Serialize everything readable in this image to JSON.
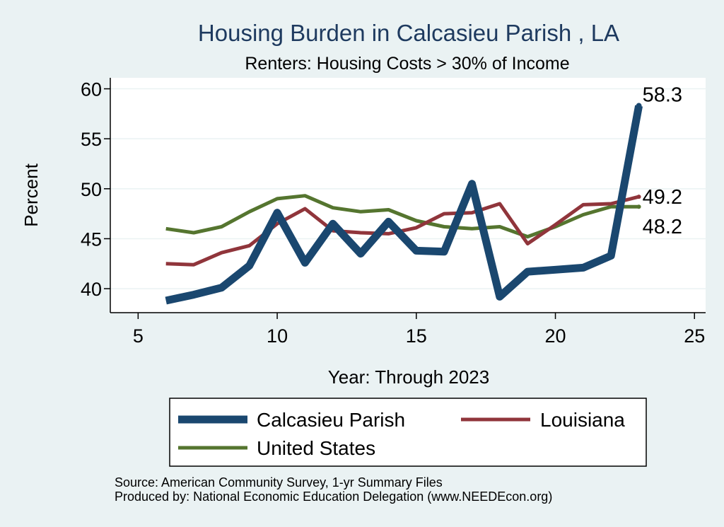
{
  "chart_data": {
    "type": "line",
    "title": "Housing Burden in Calcasieu Parish , LA",
    "subtitle": "Renters: Housing Costs > 30% of Income",
    "xlabel": "Year: Through 2023",
    "ylabel": "Percent",
    "xlim": [
      4,
      25.4
    ],
    "ylim": [
      37.6,
      61.1
    ],
    "xticks": [
      5,
      10,
      15,
      20,
      25
    ],
    "yticks": [
      40,
      45,
      50,
      55,
      60
    ],
    "x": [
      6,
      7,
      8,
      9,
      10,
      11,
      12,
      13,
      14,
      15,
      16,
      17,
      18,
      19,
      20,
      21,
      22,
      23
    ],
    "series": [
      {
        "name": "Calcasieu Parish",
        "color": "#1a476f",
        "values": [
          38.8,
          39.4,
          40.1,
          42.3,
          47.6,
          42.6,
          46.5,
          43.5,
          46.7,
          43.8,
          43.7,
          50.5,
          39.2,
          41.7,
          41.9,
          42.1,
          43.3,
          58.3
        ],
        "end_label": "58.3"
      },
      {
        "name": "Louisiana",
        "color": "#90353b",
        "values": [
          42.5,
          42.4,
          43.6,
          44.3,
          46.5,
          48.0,
          45.8,
          45.6,
          45.5,
          46.1,
          47.5,
          47.6,
          48.5,
          44.5,
          46.4,
          48.4,
          48.5,
          49.2
        ],
        "end_label": "49.2"
      },
      {
        "name": "United States",
        "color": "#55752f",
        "values": [
          46.0,
          45.6,
          46.2,
          47.7,
          49.0,
          49.3,
          48.1,
          47.7,
          47.9,
          46.8,
          46.2,
          46.0,
          46.2,
          45.2,
          46.2,
          47.4,
          48.2,
          48.2
        ],
        "end_label": "48.2"
      }
    ],
    "legend": [
      "Calcasieu Parish",
      "Louisiana",
      "United States"
    ],
    "legend_position": "bottom"
  },
  "source": {
    "line1": "Source: American Community Survey, 1-yr Summary Files",
    "line2": "Produced by: National Economic Education Delegation (www.NEEDEcon.org)"
  }
}
